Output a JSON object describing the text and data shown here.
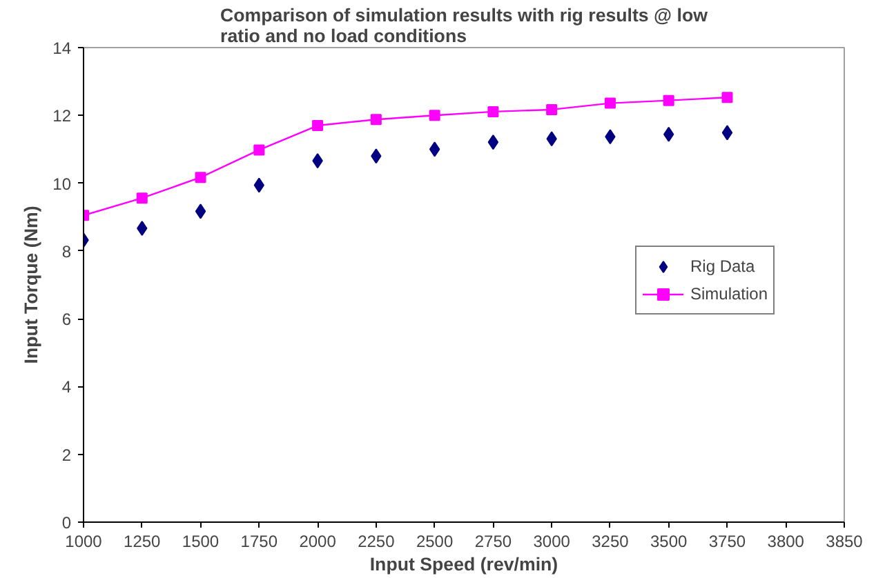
{
  "chart_data": {
    "type": "line",
    "title": "Comparison of simulation results with rig results @ low ratio and no load conditions",
    "xlabel": "Input Speed (rev/min)",
    "ylabel": "Input Torque (Nm)",
    "categories": [
      "1000",
      "1250",
      "1500",
      "1750",
      "2000",
      "2250",
      "2500",
      "2750",
      "3000",
      "3250",
      "3500",
      "3750",
      "3800",
      "3850"
    ],
    "series": [
      {
        "name": "Rig Data",
        "type": "scatter",
        "marker": "diamond",
        "color": "#000080",
        "values": [
          8.32,
          8.67,
          9.17,
          9.94,
          10.66,
          10.8,
          11.0,
          11.21,
          11.31,
          11.37,
          11.44,
          11.49,
          null,
          null
        ]
      },
      {
        "name": "Simulation",
        "marker": "square",
        "color": "#ff00ff",
        "values": [
          9.05,
          9.56,
          10.17,
          10.98,
          11.7,
          11.88,
          12.0,
          12.11,
          12.17,
          12.36,
          12.44,
          12.53,
          null,
          null
        ]
      }
    ],
    "ylim": [
      0,
      14
    ],
    "yticks": [
      0,
      2,
      4,
      6,
      8,
      10,
      12,
      14
    ],
    "grid": false,
    "legend": "right"
  }
}
